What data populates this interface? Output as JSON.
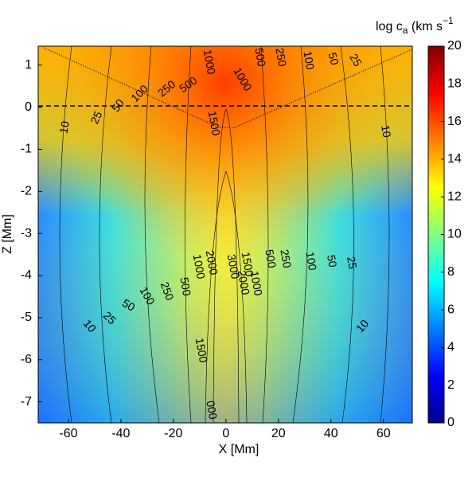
{
  "chart_data": {
    "type": "heatmap",
    "xlabel": "X [Mm]",
    "ylabel": "Z [Mm]",
    "xlim": [
      -71.5,
      71
    ],
    "xticks": [
      -60,
      -40,
      -20,
      0,
      20,
      40,
      60
    ],
    "ylim": [
      -7.5,
      1.45
    ],
    "yticks": [
      -7,
      -6,
      -5,
      -4,
      -3,
      -2,
      -1,
      0,
      1
    ],
    "colorbar": {
      "title": "log c",
      "title_sub": "a",
      "title_unit": " (km s",
      "title_sup": "−1",
      "lim": [
        0,
        20
      ],
      "ticks": [
        0,
        2,
        4,
        6,
        8,
        10,
        12,
        14,
        16,
        18,
        20
      ]
    },
    "contour_labels": [
      "10",
      "25",
      "50",
      "100",
      "250",
      "500",
      "1000",
      "500",
      "250",
      "100",
      "50",
      "25",
      "1000",
      "10",
      "1500",
      "10",
      "25",
      "50",
      "100",
      "250",
      "500",
      "1000",
      "2000",
      "3000",
      "1500",
      "2000",
      "1000",
      "500",
      "250",
      "100",
      "50",
      "25",
      "10",
      "1500",
      "000"
    ]
  }
}
